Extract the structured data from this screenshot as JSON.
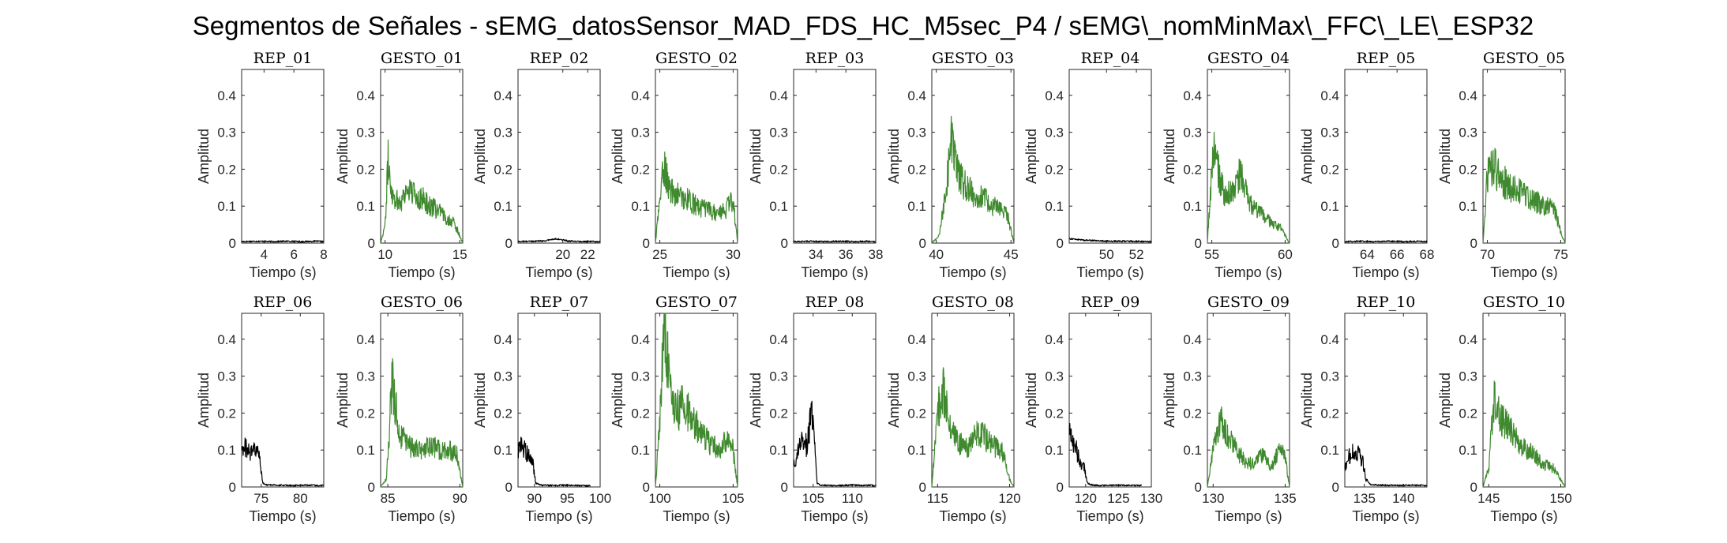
{
  "figure_title": "Segmentos de Señales - sEMG_datosSensor_MAD_FDS_HC_M5sec_P4 / sEMG\\_nomMinMax\\_FFC\\_LE\\_ESP32",
  "colors": {
    "rep": "#000000",
    "gesto": "#3f8a2e",
    "axes": "#262626"
  },
  "chart_data": [
    {
      "type": "line",
      "title": "REP_01",
      "xlabel": "Tiempo (s)",
      "ylabel": "Amplitud",
      "xlim": [
        2.5,
        8
      ],
      "ylim": [
        0,
        0.47
      ],
      "xticks": [
        4,
        6,
        8
      ],
      "yticks": [
        0,
        0.1,
        0.2,
        0.3,
        0.4
      ],
      "color": "rep",
      "shape": "flat",
      "series": [
        {
          "x": [
            2.5,
            3.5,
            4.5,
            5.5,
            6.5,
            7.5,
            8
          ],
          "y": [
            0.004,
            0.005,
            0.004,
            0.005,
            0.004,
            0.005,
            0.004
          ]
        }
      ]
    },
    {
      "type": "line",
      "title": "GESTO_01",
      "xlabel": "Tiempo (s)",
      "ylabel": "Amplitud",
      "xlim": [
        9.7,
        15.2
      ],
      "ylim": [
        0,
        0.47
      ],
      "xticks": [
        10,
        15
      ],
      "yticks": [
        0,
        0.1,
        0.2,
        0.3,
        0.4
      ],
      "color": "gesto",
      "shape": "decay",
      "series": [
        {
          "x": [
            9.7,
            10.0,
            10.2,
            10.5,
            11.0,
            11.5,
            12.0,
            12.5,
            13.0,
            13.5,
            14.0,
            14.5,
            14.9,
            15.2
          ],
          "y": [
            0.0,
            0.05,
            0.22,
            0.13,
            0.11,
            0.15,
            0.13,
            0.12,
            0.1,
            0.09,
            0.07,
            0.06,
            0.03,
            0.0
          ]
        }
      ]
    },
    {
      "type": "line",
      "title": "REP_02",
      "xlabel": "Tiempo (s)",
      "ylabel": "Amplitud",
      "xlim": [
        16.4,
        23
      ],
      "ylim": [
        0,
        0.47
      ],
      "xticks": [
        20,
        22
      ],
      "yticks": [
        0,
        0.1,
        0.2,
        0.3,
        0.4
      ],
      "color": "rep",
      "shape": "flat",
      "series": [
        {
          "x": [
            16.4,
            17.5,
            18.5,
            19.5,
            20.5,
            21.5,
            23
          ],
          "y": [
            0.004,
            0.005,
            0.006,
            0.012,
            0.005,
            0.004,
            0.004
          ]
        }
      ]
    },
    {
      "type": "line",
      "title": "GESTO_02",
      "xlabel": "Tiempo (s)",
      "ylabel": "Amplitud",
      "xlim": [
        24.7,
        30.3
      ],
      "ylim": [
        0,
        0.47
      ],
      "xticks": [
        25,
        30
      ],
      "yticks": [
        0,
        0.1,
        0.2,
        0.3,
        0.4
      ],
      "color": "gesto",
      "shape": "decay",
      "series": [
        {
          "x": [
            24.7,
            25.0,
            25.3,
            25.7,
            26.2,
            26.8,
            27.5,
            28.2,
            28.9,
            29.5,
            30.0,
            30.3
          ],
          "y": [
            0.0,
            0.12,
            0.21,
            0.14,
            0.13,
            0.12,
            0.1,
            0.09,
            0.08,
            0.09,
            0.12,
            0.0
          ]
        }
      ]
    },
    {
      "type": "line",
      "title": "REP_03",
      "xlabel": "Tiempo (s)",
      "ylabel": "Amplitud",
      "xlim": [
        32.5,
        38
      ],
      "ylim": [
        0,
        0.47
      ],
      "xticks": [
        34,
        36,
        38
      ],
      "yticks": [
        0,
        0.1,
        0.2,
        0.3,
        0.4
      ],
      "color": "rep",
      "shape": "flat",
      "series": [
        {
          "x": [
            32.5,
            33.5,
            34.5,
            35.5,
            36.5,
            37.5,
            38
          ],
          "y": [
            0.004,
            0.005,
            0.004,
            0.005,
            0.004,
            0.005,
            0.004
          ]
        }
      ]
    },
    {
      "type": "line",
      "title": "GESTO_03",
      "xlabel": "Tiempo (s)",
      "ylabel": "Amplitud",
      "xlim": [
        39.7,
        45.2
      ],
      "ylim": [
        0,
        0.47
      ],
      "xticks": [
        40,
        45
      ],
      "yticks": [
        0,
        0.1,
        0.2,
        0.3,
        0.4
      ],
      "color": "gesto",
      "shape": "decay",
      "series": [
        {
          "x": [
            39.7,
            40.2,
            40.6,
            41.0,
            41.5,
            42.0,
            42.6,
            43.2,
            43.8,
            44.4,
            44.8,
            45.2
          ],
          "y": [
            0.0,
            0.02,
            0.13,
            0.28,
            0.18,
            0.15,
            0.13,
            0.12,
            0.1,
            0.09,
            0.07,
            0.0
          ]
        }
      ]
    },
    {
      "type": "line",
      "title": "REP_04",
      "xlabel": "Tiempo (s)",
      "ylabel": "Amplitud",
      "xlim": [
        47.5,
        53
      ],
      "ylim": [
        0,
        0.47
      ],
      "xticks": [
        50,
        52
      ],
      "yticks": [
        0,
        0.1,
        0.2,
        0.3,
        0.4
      ],
      "color": "rep",
      "shape": "flat",
      "series": [
        {
          "x": [
            47.5,
            48.0,
            48.5,
            49.5,
            50.5,
            51.5,
            53
          ],
          "y": [
            0.012,
            0.01,
            0.008,
            0.006,
            0.005,
            0.005,
            0.004
          ]
        }
      ]
    },
    {
      "type": "line",
      "title": "GESTO_04",
      "xlabel": "Tiempo (s)",
      "ylabel": "Amplitud",
      "xlim": [
        54.7,
        60.3
      ],
      "ylim": [
        0,
        0.47
      ],
      "xticks": [
        55,
        60
      ],
      "yticks": [
        0,
        0.1,
        0.2,
        0.3,
        0.4
      ],
      "color": "gesto",
      "shape": "decay",
      "series": [
        {
          "x": [
            54.7,
            55.1,
            55.4,
            55.9,
            56.5,
            57.0,
            57.5,
            58.0,
            58.6,
            59.2,
            59.7,
            60.3
          ],
          "y": [
            0.0,
            0.26,
            0.2,
            0.12,
            0.15,
            0.19,
            0.11,
            0.09,
            0.07,
            0.05,
            0.04,
            0.0
          ]
        }
      ]
    },
    {
      "type": "line",
      "title": "REP_05",
      "xlabel": "Tiempo (s)",
      "ylabel": "Amplitud",
      "xlim": [
        62.5,
        68
      ],
      "ylim": [
        0,
        0.47
      ],
      "xticks": [
        64,
        66,
        68
      ],
      "yticks": [
        0,
        0.1,
        0.2,
        0.3,
        0.4
      ],
      "color": "rep",
      "shape": "flat",
      "series": [
        {
          "x": [
            62.5,
            63.5,
            64.5,
            65.5,
            66.5,
            67.5,
            68
          ],
          "y": [
            0.004,
            0.005,
            0.004,
            0.005,
            0.004,
            0.005,
            0.004
          ]
        }
      ]
    },
    {
      "type": "line",
      "title": "GESTO_05",
      "xlabel": "Tiempo (s)",
      "ylabel": "Amplitud",
      "xlim": [
        69.7,
        75.3
      ],
      "ylim": [
        0,
        0.47
      ],
      "xticks": [
        70,
        75
      ],
      "yticks": [
        0,
        0.1,
        0.2,
        0.3,
        0.4
      ],
      "color": "gesto",
      "shape": "decay",
      "series": [
        {
          "x": [
            69.7,
            70.0,
            70.4,
            71.0,
            71.6,
            72.2,
            72.8,
            73.4,
            74.0,
            74.6,
            75.0,
            75.3
          ],
          "y": [
            0.0,
            0.18,
            0.21,
            0.17,
            0.15,
            0.14,
            0.12,
            0.11,
            0.1,
            0.09,
            0.03,
            0.0
          ]
        }
      ]
    },
    {
      "type": "line",
      "title": "REP_06",
      "xlabel": "Tiempo (s)",
      "ylabel": "Amplitud",
      "xlim": [
        72.5,
        83
      ],
      "ylim": [
        0,
        0.47
      ],
      "xticks": [
        75,
        80
      ],
      "yticks": [
        0,
        0.1,
        0.2,
        0.3,
        0.4
      ],
      "color": "rep",
      "shape": "burst",
      "series": [
        {
          "x": [
            72.5,
            73.0,
            73.6,
            74.2,
            74.8,
            75.2,
            75.8,
            77,
            79,
            81,
            83
          ],
          "y": [
            0.1,
            0.11,
            0.09,
            0.1,
            0.08,
            0.01,
            0.005,
            0.005,
            0.004,
            0.005,
            0.004
          ]
        }
      ]
    },
    {
      "type": "line",
      "title": "GESTO_06",
      "xlabel": "Tiempo (s)",
      "ylabel": "Amplitud",
      "xlim": [
        84.5,
        90.2
      ],
      "ylim": [
        0,
        0.47
      ],
      "xticks": [
        85,
        90
      ],
      "yticks": [
        0,
        0.1,
        0.2,
        0.3,
        0.4
      ],
      "color": "gesto",
      "shape": "decay",
      "series": [
        {
          "x": [
            84.5,
            84.9,
            85.3,
            85.8,
            86.5,
            87.2,
            88.0,
            88.7,
            89.3,
            89.8,
            90.2
          ],
          "y": [
            0.0,
            0.02,
            0.29,
            0.14,
            0.11,
            0.1,
            0.11,
            0.1,
            0.1,
            0.09,
            0.0
          ]
        }
      ]
    },
    {
      "type": "line",
      "title": "REP_07",
      "xlabel": "Tiempo (s)",
      "ylabel": "Amplitud",
      "xlim": [
        87.5,
        100
      ],
      "ylim": [
        0,
        0.47
      ],
      "xticks": [
        90,
        95,
        100
      ],
      "yticks": [
        0,
        0.1,
        0.2,
        0.3,
        0.4
      ],
      "color": "rep",
      "shape": "burst",
      "series": [
        {
          "x": [
            87.5,
            88.0,
            88.6,
            89.2,
            89.8,
            90.2,
            91,
            93,
            95,
            97,
            98.5
          ],
          "y": [
            0.09,
            0.12,
            0.1,
            0.08,
            0.06,
            0.01,
            0.005,
            0.004,
            0.005,
            0.004,
            0.004
          ]
        }
      ]
    },
    {
      "type": "line",
      "title": "GESTO_07",
      "xlabel": "Tiempo (s)",
      "ylabel": "Amplitud",
      "xlim": [
        99.7,
        105.3
      ],
      "ylim": [
        0,
        0.47
      ],
      "xticks": [
        100,
        105
      ],
      "yticks": [
        0,
        0.1,
        0.2,
        0.3,
        0.4
      ],
      "color": "gesto",
      "shape": "decay",
      "series": [
        {
          "x": [
            99.7,
            100.0,
            100.3,
            100.6,
            101.0,
            101.6,
            102.2,
            102.8,
            103.4,
            104.0,
            104.6,
            105.0,
            105.3
          ],
          "y": [
            0.0,
            0.18,
            0.47,
            0.3,
            0.2,
            0.22,
            0.19,
            0.15,
            0.12,
            0.1,
            0.13,
            0.1,
            0.0
          ]
        }
      ]
    },
    {
      "type": "line",
      "title": "REP_08",
      "xlabel": "Tiempo (s)",
      "ylabel": "Amplitud",
      "xlim": [
        102.5,
        113
      ],
      "ylim": [
        0,
        0.47
      ],
      "xticks": [
        105,
        110
      ],
      "yticks": [
        0,
        0.1,
        0.2,
        0.3,
        0.4
      ],
      "color": "rep",
      "shape": "burst",
      "series": [
        {
          "x": [
            102.5,
            103.0,
            103.6,
            104.2,
            104.8,
            105.1,
            105.5,
            106,
            108,
            110,
            113
          ],
          "y": [
            0.06,
            0.09,
            0.13,
            0.11,
            0.21,
            0.14,
            0.01,
            0.005,
            0.004,
            0.005,
            0.004
          ]
        }
      ]
    },
    {
      "type": "line",
      "title": "GESTO_08",
      "xlabel": "Tiempo (s)",
      "ylabel": "Amplitud",
      "xlim": [
        114.6,
        120.3
      ],
      "ylim": [
        0,
        0.47
      ],
      "xticks": [
        115,
        120
      ],
      "yticks": [
        0,
        0.1,
        0.2,
        0.3,
        0.4
      ],
      "color": "gesto",
      "shape": "decay",
      "series": [
        {
          "x": [
            114.6,
            115.0,
            115.4,
            115.9,
            116.5,
            117.1,
            117.8,
            118.4,
            119.0,
            119.6,
            120.0,
            120.3
          ],
          "y": [
            0.0,
            0.2,
            0.27,
            0.16,
            0.12,
            0.1,
            0.15,
            0.13,
            0.11,
            0.09,
            0.02,
            0.0
          ]
        }
      ]
    },
    {
      "type": "line",
      "title": "REP_09",
      "xlabel": "Tiempo (s)",
      "ylabel": "Amplitud",
      "xlim": [
        117.5,
        130
      ],
      "ylim": [
        0,
        0.47
      ],
      "xticks": [
        120,
        125,
        130
      ],
      "yticks": [
        0,
        0.1,
        0.2,
        0.3,
        0.4
      ],
      "color": "rep",
      "shape": "burst",
      "series": [
        {
          "x": [
            117.5,
            118.0,
            118.6,
            119.2,
            119.8,
            120.3,
            121,
            123,
            125,
            127,
            128.5
          ],
          "y": [
            0.16,
            0.12,
            0.1,
            0.07,
            0.05,
            0.01,
            0.005,
            0.004,
            0.005,
            0.004,
            0.004
          ]
        }
      ]
    },
    {
      "type": "line",
      "title": "GESTO_09",
      "xlabel": "Tiempo (s)",
      "ylabel": "Amplitud",
      "xlim": [
        129.6,
        135.3
      ],
      "ylim": [
        0,
        0.47
      ],
      "xticks": [
        130,
        135
      ],
      "yticks": [
        0,
        0.1,
        0.2,
        0.3,
        0.4
      ],
      "color": "gesto",
      "shape": "decay",
      "series": [
        {
          "x": [
            129.6,
            130.0,
            130.5,
            131.0,
            131.6,
            132.2,
            132.8,
            133.4,
            134.0,
            134.6,
            135.0,
            135.3
          ],
          "y": [
            0.0,
            0.1,
            0.19,
            0.14,
            0.1,
            0.07,
            0.06,
            0.09,
            0.05,
            0.1,
            0.08,
            0.0
          ]
        }
      ]
    },
    {
      "type": "line",
      "title": "REP_10",
      "xlabel": "Tiempo (s)",
      "ylabel": "Amplitud",
      "xlim": [
        132.5,
        143
      ],
      "ylim": [
        0,
        0.47
      ],
      "xticks": [
        135,
        140
      ],
      "yticks": [
        0,
        0.1,
        0.2,
        0.3,
        0.4
      ],
      "color": "rep",
      "shape": "burst",
      "series": [
        {
          "x": [
            132.5,
            133.0,
            133.6,
            134.2,
            134.8,
            135.2,
            135.8,
            137,
            139,
            141,
            143
          ],
          "y": [
            0.05,
            0.08,
            0.1,
            0.09,
            0.07,
            0.02,
            0.006,
            0.005,
            0.004,
            0.005,
            0.004
          ]
        }
      ]
    },
    {
      "type": "line",
      "title": "GESTO_10",
      "xlabel": "Tiempo (s)",
      "ylabel": "Amplitud",
      "xlim": [
        144.6,
        150.3
      ],
      "ylim": [
        0,
        0.47
      ],
      "xticks": [
        145,
        150
      ],
      "yticks": [
        0,
        0.1,
        0.2,
        0.3,
        0.4
      ],
      "color": "gesto",
      "shape": "decay",
      "series": [
        {
          "x": [
            144.6,
            145.0,
            145.4,
            145.9,
            146.5,
            147.1,
            147.7,
            148.3,
            148.9,
            149.5,
            150.0,
            150.3
          ],
          "y": [
            0.0,
            0.05,
            0.26,
            0.18,
            0.15,
            0.12,
            0.1,
            0.08,
            0.06,
            0.05,
            0.02,
            0.0
          ]
        }
      ]
    }
  ]
}
